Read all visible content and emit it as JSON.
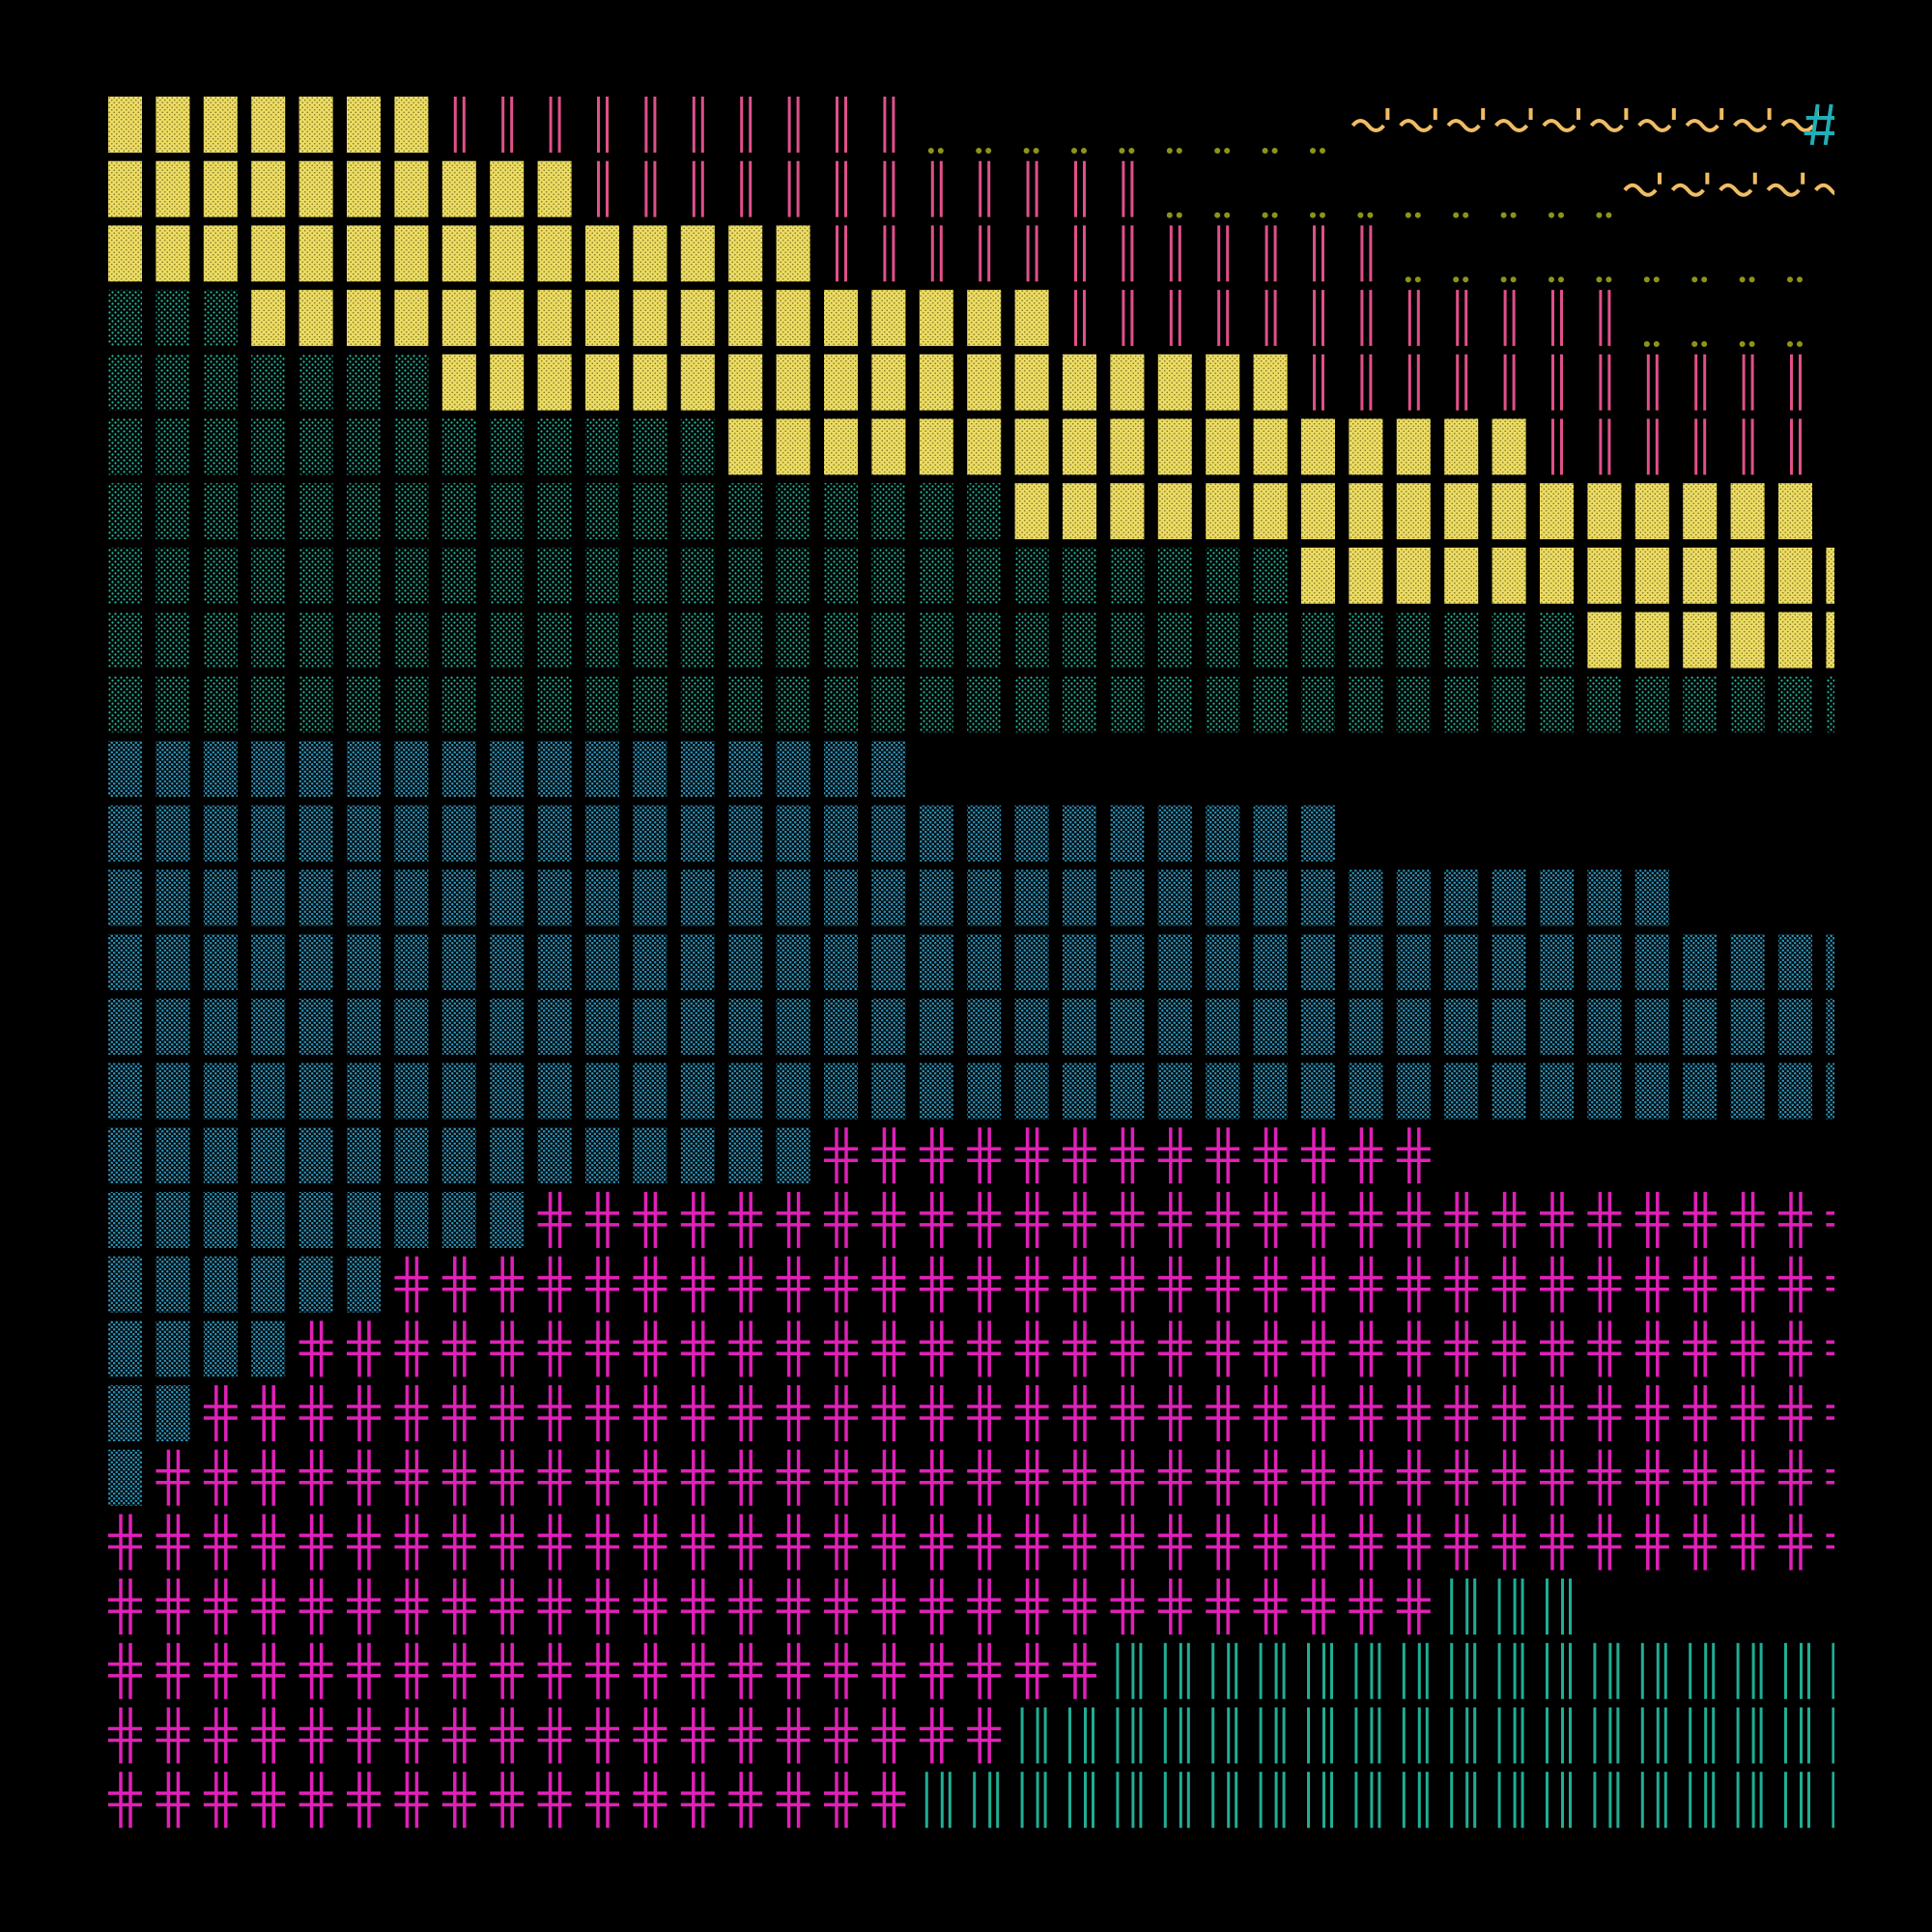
{
  "artwork": {
    "background": "#000000",
    "rows": 27,
    "cols": 37,
    "palette": {
      "yellow": "#ecdc64",
      "pink": "#e0508a",
      "olive": "#8e9418",
      "orange": "#f0bc64",
      "teal": "#20aeb8",
      "mint": "#22c0a4",
      "blue": "#2c8eb2",
      "magenta": "#e020b8",
      "green": "#20ae94"
    },
    "glyphs": {
      "block": "yellow-dotted-block",
      "bars": "pink-double-bar",
      "dots": "olive-dot-pair",
      "tilde": "orange-tilde-mark",
      "hash": "teal-hash",
      "mint": "mint-dotted-block",
      "blue": "blue-dotted-block",
      "cross": "magenta-double-cross",
      "ticks": "green-tick-bars"
    },
    "regions": [
      {
        "row": 0,
        "bars": [
          7,
          17
        ],
        "dots": [
          17,
          26
        ],
        "tilde": [
          26,
          35.5
        ],
        "hash": [
          35.5,
          37
        ]
      },
      {
        "row": 1,
        "bars": [
          10,
          22
        ],
        "dots": [
          22,
          31.7
        ],
        "tilde": [
          31.7,
          37
        ]
      },
      {
        "row": 2,
        "bars": [
          15,
          27
        ],
        "dots": [
          27,
          37
        ]
      },
      {
        "mint": [
          0,
          3
        ],
        "row": 3,
        "bars": [
          20,
          32
        ],
        "dots": [
          32,
          37
        ]
      },
      {
        "mint": [
          0,
          7
        ],
        "row": 4,
        "bars": [
          25,
          37
        ]
      },
      {
        "mint": [
          0,
          13
        ],
        "row": 5,
        "bars": [
          30,
          37
        ]
      },
      {
        "mint": [
          0,
          19
        ],
        "row": 6
      },
      {
        "mint": [
          0,
          25
        ],
        "row": 7
      },
      {
        "mint": [
          0,
          31
        ],
        "row": 8
      },
      {
        "mint": [
          0,
          37
        ],
        "row": 9
      },
      {
        "blue": [
          0,
          17
        ],
        "row": 10
      },
      {
        "blue": [
          0,
          26
        ],
        "row": 11
      },
      {
        "blue": [
          0,
          33
        ],
        "row": 12
      },
      {
        "blue": [
          0,
          37
        ],
        "row": 13
      },
      {
        "blue": [
          0,
          37
        ],
        "row": 14
      },
      {
        "blue": [
          0,
          37
        ],
        "row": 15
      },
      {
        "blue": [
          0,
          15
        ],
        "cross": [
          15,
          28
        ],
        "row": 16
      },
      {
        "blue": [
          0,
          9
        ],
        "cross": [
          9,
          37
        ],
        "row": 17
      },
      {
        "blue": [
          0,
          6
        ],
        "cross": [
          6,
          37
        ],
        "row": 18
      },
      {
        "blue": [
          0,
          4
        ],
        "cross": [
          4,
          37
        ],
        "row": 19
      },
      {
        "blue": [
          0,
          2
        ],
        "cross": [
          2,
          37
        ],
        "row": 20
      },
      {
        "blue": [
          0,
          1
        ],
        "cross": [
          1,
          37
        ],
        "row": 21
      },
      {
        "cross": [
          0,
          37
        ],
        "row": 22
      },
      {
        "cross": [
          0,
          28
        ],
        "ticks": [
          28,
          31
        ],
        "row": 23
      },
      {
        "cross": [
          0,
          21
        ],
        "ticks": [
          21,
          37
        ],
        "row": 24
      },
      {
        "cross": [
          0,
          19
        ],
        "ticks": [
          19,
          37
        ],
        "row": 25
      },
      {
        "cross": [
          0,
          17
        ],
        "ticks": [
          17,
          37
        ],
        "row": 26
      }
    ],
    "yellow_spans": [
      [
        0,
        7
      ],
      [
        0,
        10
      ],
      [
        0,
        15
      ],
      [
        3,
        20
      ],
      [
        7,
        25
      ],
      [
        13,
        30
      ],
      [
        19,
        36
      ],
      [
        25,
        37
      ],
      [
        31,
        37
      ],
      [
        37,
        37
      ]
    ]
  }
}
